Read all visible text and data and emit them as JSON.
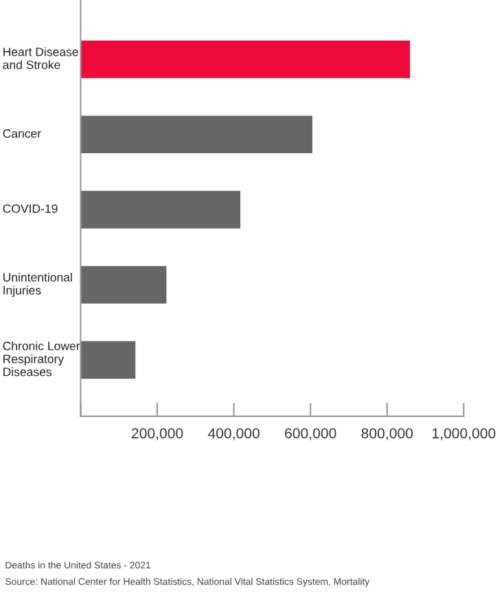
{
  "chart_data": {
    "type": "bar",
    "orientation": "horizontal",
    "categories": [
      "Heart Disease\nand Stroke",
      "Cancer",
      "COVID-19",
      "Unintentional\nInjuries",
      "Chronic Lower\nRespiratory\nDiseases"
    ],
    "values": [
      860000,
      605000,
      417000,
      224000,
      143000
    ],
    "colors": [
      "#f00a3c",
      "#666666",
      "#666666",
      "#666666",
      "#666666"
    ],
    "xlim": [
      0,
      1000000
    ],
    "xticks": [
      {
        "value": 0,
        "label": null
      },
      {
        "value": 200000,
        "label": "200,000"
      },
      {
        "value": 400000,
        "label": "400,000"
      },
      {
        "value": 600000,
        "label": "600,000"
      },
      {
        "value": 800000,
        "label": "800,000"
      },
      {
        "value": 1000000,
        "label": "1,000,000"
      }
    ],
    "grid": false,
    "legend": false,
    "annotations": [
      "Deaths in the United States - 2021",
      "Source: National Center for Health Statistics, National Vital Statistics System, Mortality"
    ]
  }
}
